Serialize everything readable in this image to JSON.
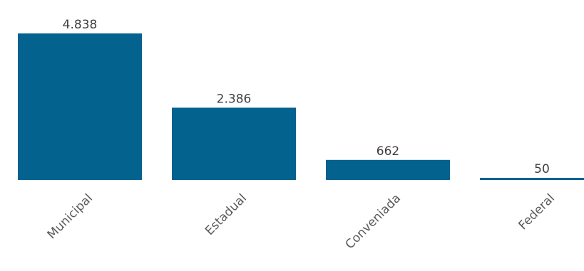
{
  "chart_data": {
    "type": "bar",
    "title": "",
    "xlabel": "",
    "ylabel": "",
    "categories": [
      "Municipal",
      "Estadual",
      "Conveniada",
      "Federal"
    ],
    "values": [
      4838,
      2386,
      662,
      50
    ],
    "value_labels": [
      "4.838",
      "2.386",
      "662",
      "50"
    ],
    "ylim": [
      0,
      4838
    ],
    "grid": false,
    "legend": "none",
    "colors": {
      "bar": "#04628f"
    }
  }
}
